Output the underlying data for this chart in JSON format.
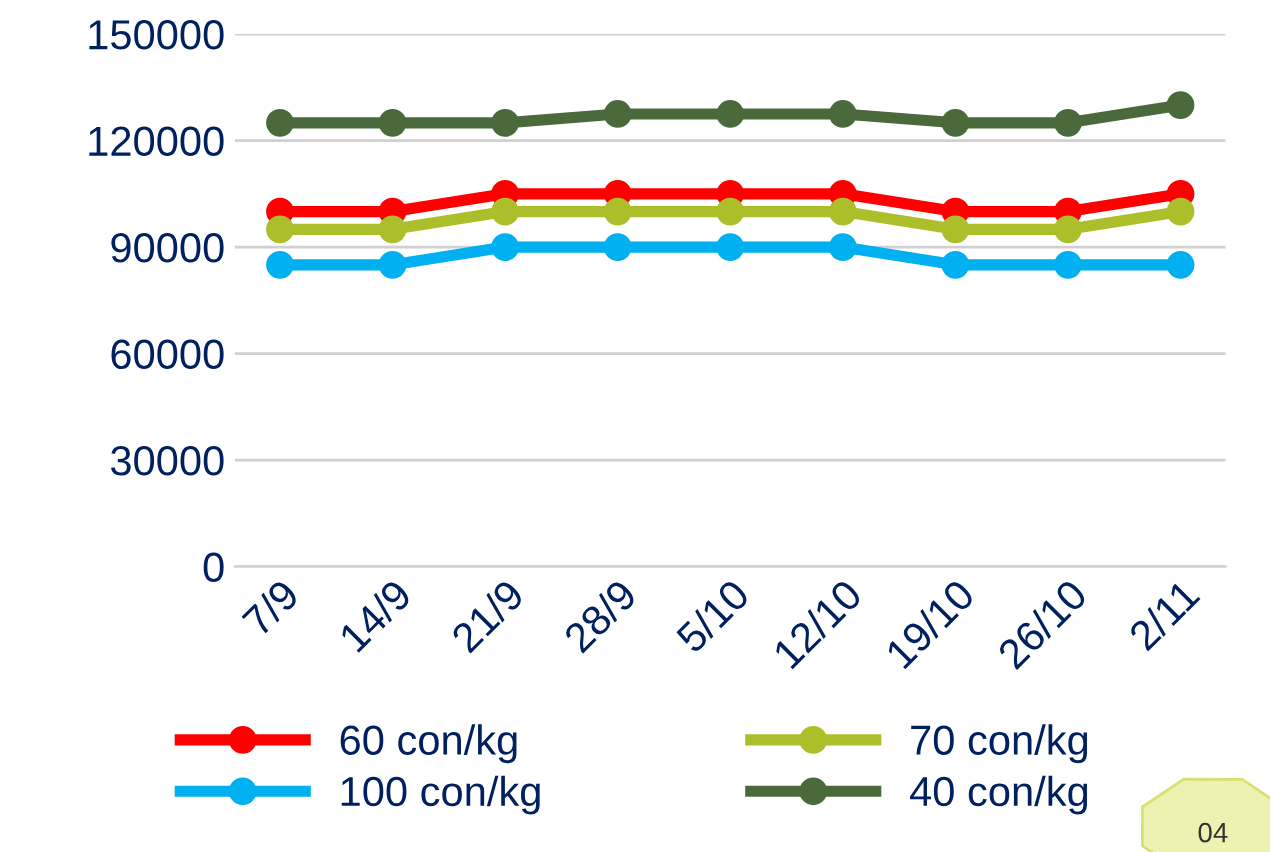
{
  "chart_data": {
    "type": "line",
    "categories": [
      "7/9",
      "14/9",
      "21/9",
      "28/9",
      "5/10",
      "12/10",
      "19/10",
      "26/10",
      "2/11"
    ],
    "series": [
      {
        "name": "60 con/kg",
        "color": "#ff0000",
        "values": [
          100000,
          100000,
          105000,
          105000,
          105000,
          105000,
          100000,
          100000,
          105000
        ]
      },
      {
        "name": "70 con/kg",
        "color": "#acbf2a",
        "values": [
          95000,
          95000,
          100000,
          100000,
          100000,
          100000,
          95000,
          95000,
          100000
        ]
      },
      {
        "name": "100 con/kg",
        "color": "#00b0f0",
        "values": [
          85000,
          85000,
          90000,
          90000,
          90000,
          90000,
          85000,
          85000,
          85000
        ]
      },
      {
        "name": "40 con/kg",
        "color": "#4a6a3c",
        "values": [
          125000,
          125000,
          125000,
          127500,
          127500,
          127500,
          125000,
          125000,
          130000
        ]
      }
    ],
    "ylim": [
      0,
      150000
    ],
    "yticks": [
      0,
      30000,
      60000,
      90000,
      120000,
      150000
    ],
    "grid": "y",
    "legend": "bottom",
    "marker": "circle",
    "line_style": "solid",
    "annotations": [
      "04"
    ]
  }
}
